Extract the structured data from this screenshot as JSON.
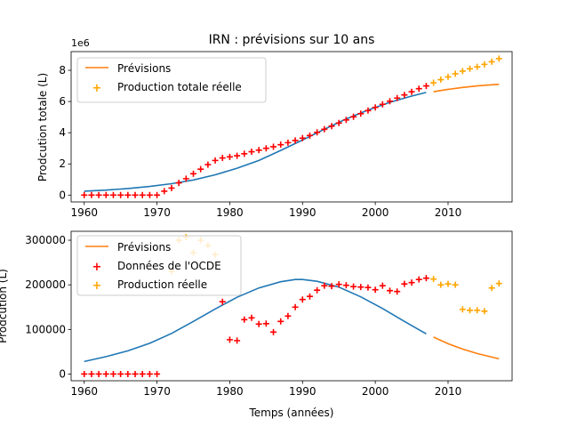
{
  "chart_data": [
    {
      "type": "line",
      "title": "IRN : prévisions sur 10 ans",
      "xlabel": "",
      "ylabel": "Prodcution totale (L)",
      "y_offset_label": "1e6",
      "xlim": [
        1958.2,
        2018.8
      ],
      "ylim": [
        -0.44,
        9.2
      ],
      "xticks": [
        1960,
        1970,
        1980,
        1990,
        2000,
        2010
      ],
      "yticks": [
        0,
        2,
        4,
        6,
        8
      ],
      "legend_position": "upper-left",
      "grid": false,
      "colors": {
        "fit": "#1f77b4",
        "forecast": "#ff7f0e",
        "oecd": "#ff0000",
        "real": "#ffa500"
      },
      "series": [
        {
          "name": "",
          "kind": "line",
          "color": "#1f77b4",
          "x": [
            1960,
            1963,
            1966,
            1969,
            1972,
            1975,
            1978,
            1981,
            1984,
            1987,
            1990,
            1993,
            1996,
            1999,
            2002,
            2005,
            2007
          ],
          "y": [
            0.25,
            0.32,
            0.42,
            0.55,
            0.73,
            0.97,
            1.3,
            1.72,
            2.22,
            2.86,
            3.53,
            4.22,
            4.88,
            5.45,
            5.95,
            6.35,
            6.58
          ]
        },
        {
          "name": "Prévisions",
          "kind": "line",
          "color": "#ff7f0e",
          "x": [
            2008,
            2010,
            2012,
            2014,
            2016,
            2017
          ],
          "y": [
            6.63,
            6.78,
            6.9,
            7.0,
            7.07,
            7.1
          ]
        },
        {
          "name": "",
          "kind": "scatter",
          "color": "#ff0000",
          "x": [
            1960,
            1961,
            1962,
            1963,
            1964,
            1965,
            1966,
            1967,
            1968,
            1969,
            1970,
            1971,
            1972,
            1973,
            1974,
            1975,
            1976,
            1977,
            1978,
            1979,
            1980,
            1981,
            1982,
            1983,
            1984,
            1985,
            1986,
            1987,
            1988,
            1989,
            1990,
            1991,
            1992,
            1993,
            1994,
            1995,
            1996,
            1997,
            1998,
            1999,
            2000,
            2001,
            2002,
            2003,
            2004,
            2005,
            2006,
            2007
          ],
          "y": [
            0,
            0,
            0,
            0,
            0,
            0,
            0,
            0,
            0,
            0,
            0,
            0.25,
            0.45,
            0.78,
            1.05,
            1.37,
            1.66,
            1.95,
            2.22,
            2.38,
            2.45,
            2.52,
            2.65,
            2.78,
            2.88,
            3.0,
            3.1,
            3.23,
            3.36,
            3.5,
            3.65,
            3.82,
            4.02,
            4.22,
            4.42,
            4.62,
            4.82,
            5.02,
            5.22,
            5.42,
            5.62,
            5.82,
            6.02,
            6.22,
            6.42,
            6.62,
            6.82,
            7.0
          ]
        },
        {
          "name": "Production totale réelle",
          "kind": "scatter",
          "color": "#ffa500",
          "x": [
            2008,
            2009,
            2010,
            2011,
            2012,
            2013,
            2014,
            2015,
            2016,
            2017
          ],
          "y": [
            7.2,
            7.4,
            7.58,
            7.78,
            7.95,
            8.1,
            8.22,
            8.38,
            8.55,
            8.75
          ]
        }
      ]
    },
    {
      "type": "line",
      "title": "",
      "xlabel": "Temps (années)",
      "ylabel": "Prodcution (L)",
      "xlim": [
        1958.2,
        2018.8
      ],
      "ylim": [
        -15000,
        320000
      ],
      "xticks": [
        1960,
        1970,
        1980,
        1990,
        2000,
        2010
      ],
      "yticks": [
        0,
        100000,
        200000,
        300000
      ],
      "legend_position": "upper-left",
      "grid": false,
      "series": [
        {
          "name": "",
          "kind": "line",
          "color": "#1f77b4",
          "x": [
            1960,
            1963,
            1966,
            1969,
            1972,
            1975,
            1978,
            1981,
            1984,
            1987,
            1989,
            1990,
            1992,
            1995,
            1998,
            2001,
            2004,
            2007
          ],
          "y": [
            28000,
            39000,
            52000,
            69000,
            91000,
            118000,
            146000,
            172000,
            193000,
            207000,
            212000,
            212000,
            208000,
            195000,
            173000,
            147000,
            118000,
            90000
          ]
        },
        {
          "name": "Prévisions",
          "kind": "line",
          "color": "#ff7f0e",
          "x": [
            2008,
            2010,
            2012,
            2014,
            2016,
            2017
          ],
          "y": [
            83000,
            68000,
            56000,
            46000,
            38000,
            34000
          ]
        },
        {
          "name": "Données de l'OCDE",
          "kind": "scatter",
          "color": "#ff0000",
          "x": [
            1960,
            1961,
            1962,
            1963,
            1964,
            1965,
            1966,
            1967,
            1968,
            1969,
            1970,
            1979,
            1980,
            1981,
            1982,
            1983,
            1984,
            1985,
            1986,
            1987,
            1988,
            1989,
            1990,
            1991,
            1992,
            1993,
            1994,
            1995,
            1996,
            1997,
            1998,
            1999,
            2000,
            2001,
            2002,
            2003,
            2004,
            2005,
            2006,
            2007
          ],
          "y": [
            0,
            0,
            0,
            0,
            0,
            0,
            0,
            0,
            0,
            0,
            0,
            162000,
            77000,
            75000,
            122000,
            126000,
            112000,
            113000,
            94000,
            118000,
            130000,
            150000,
            167000,
            174000,
            188000,
            198000,
            197000,
            201000,
            199000,
            196000,
            195000,
            194000,
            189000,
            198000,
            187000,
            185000,
            202000,
            205000,
            212000,
            215000
          ]
        },
        {
          "name": "Production réelle",
          "kind": "scatter",
          "color": "#ffa500",
          "x": [
            1972,
            1973,
            1974,
            1975,
            1976,
            1977,
            1978,
            2008,
            2009,
            2010,
            2011,
            2012,
            2013,
            2014,
            2015,
            2016,
            2017
          ],
          "y": [
            230000,
            300000,
            307000,
            272000,
            300000,
            288000,
            268000,
            213000,
            200000,
            202000,
            200000,
            145000,
            143000,
            143000,
            141000,
            193000,
            203000
          ]
        }
      ]
    }
  ]
}
